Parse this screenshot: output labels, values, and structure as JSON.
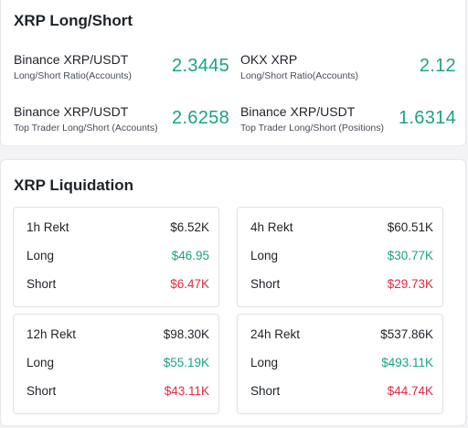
{
  "long_short": {
    "title": "XRP Long/Short",
    "ratios": [
      {
        "name": "Binance XRP/USDT",
        "sub": "Long/Short Ratio(Accounts)",
        "value": "2.3445"
      },
      {
        "name": "OKX XRP",
        "sub": "Long/Short Ratio(Accounts)",
        "value": "2.12"
      },
      {
        "name": "Binance XRP/USDT",
        "sub": "Top Trader Long/Short (Accounts)",
        "value": "2.6258"
      },
      {
        "name": "Binance XRP/USDT",
        "sub": "Top Trader Long/Short (Positions)",
        "value": "1.6314"
      }
    ]
  },
  "liquidation": {
    "title": "XRP Liquidation",
    "boxes": [
      {
        "label": "1h Rekt",
        "total": "$6.52K",
        "long_label": "Long",
        "long": "$46.95",
        "short_label": "Short",
        "short": "$6.47K"
      },
      {
        "label": "4h Rekt",
        "total": "$60.51K",
        "long_label": "Long",
        "long": "$30.77K",
        "short_label": "Short",
        "short": "$29.73K"
      },
      {
        "label": "12h Rekt",
        "total": "$98.30K",
        "long_label": "Long",
        "long": "$55.19K",
        "short_label": "Short",
        "short": "$43.11K"
      },
      {
        "label": "24h Rekt",
        "total": "$537.86K",
        "long_label": "Long",
        "long": "$493.11K",
        "short_label": "Short",
        "short": "$44.74K"
      }
    ]
  },
  "colors": {
    "positive": "#1aa383",
    "negative": "#e0293f",
    "text": "#1e2329"
  }
}
